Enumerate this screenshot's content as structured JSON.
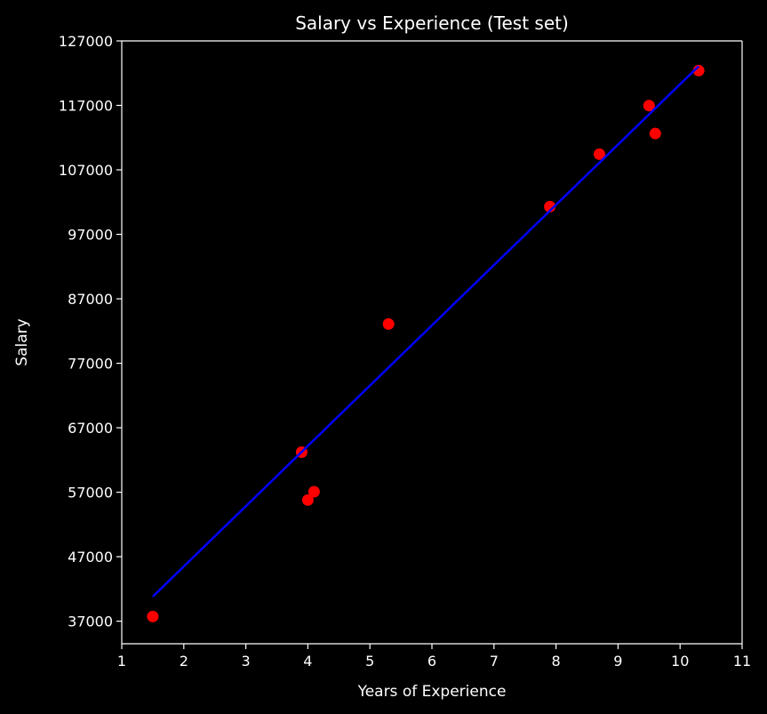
{
  "chart_data": {
    "type": "scatter",
    "title": "Salary vs Experience (Test set)",
    "xlabel": "Years of Experience",
    "ylabel": "Salary",
    "xlim": [
      1,
      11
    ],
    "ylim": [
      33500,
      127000
    ],
    "x_ticks": [
      1,
      2,
      3,
      4,
      5,
      6,
      7,
      8,
      9,
      10,
      11
    ],
    "y_ticks": [
      37000,
      47000,
      57000,
      67000,
      77000,
      87000,
      97000,
      107000,
      117000,
      127000
    ],
    "grid": false,
    "series": [
      {
        "kind": "scatter",
        "color": "#ff0000",
        "points": [
          {
            "x": 1.5,
            "y": 37731
          },
          {
            "x": 3.9,
            "y": 63218
          },
          {
            "x": 4.0,
            "y": 55794
          },
          {
            "x": 4.1,
            "y": 57081
          },
          {
            "x": 5.3,
            "y": 83088
          },
          {
            "x": 7.9,
            "y": 101302
          },
          {
            "x": 8.7,
            "y": 109431
          },
          {
            "x": 9.5,
            "y": 116969
          },
          {
            "x": 9.6,
            "y": 112635
          },
          {
            "x": 10.3,
            "y": 122391
          }
        ]
      },
      {
        "kind": "line",
        "color": "#0000ff",
        "points": [
          {
            "x": 1.5,
            "y": 40818
          },
          {
            "x": 10.3,
            "y": 123079
          }
        ]
      }
    ],
    "colors": {
      "background": "#000000",
      "axes": "#ffffff",
      "text": "#ffffff"
    }
  }
}
